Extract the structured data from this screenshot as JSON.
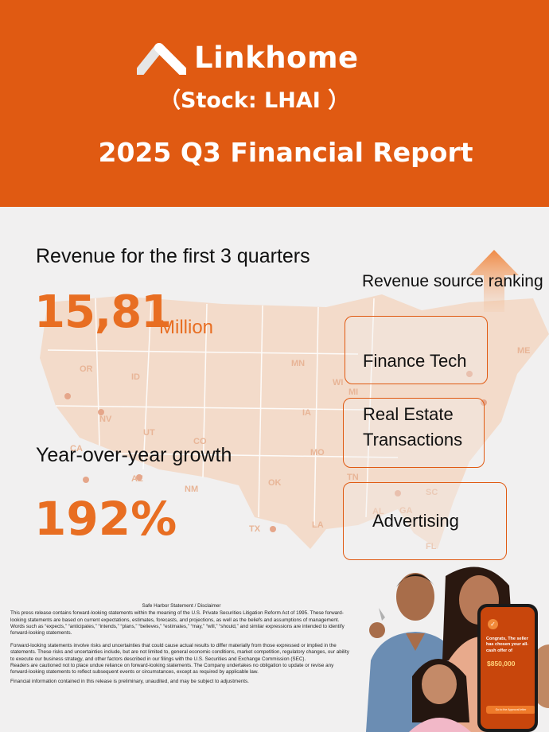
{
  "header": {
    "brand": "Linkhome",
    "stock": "（Stock: LHAI ）",
    "report_title": "2025 Q3 Financial Report",
    "background": "#e05a12"
  },
  "colors": {
    "accent": "#e86e22",
    "box_border": "#e05a12",
    "page_bg": "#f1f0f0",
    "map": "#f0c3a3"
  },
  "map_labels": [
    "OR",
    "ID",
    "NV",
    "UT",
    "CO",
    "CA",
    "AZ",
    "NM",
    "TX",
    "OK",
    "MN",
    "IA",
    "MO",
    "LA",
    "WI",
    "MI",
    "TN",
    "AL",
    "GA",
    "SC",
    "ME",
    "FL"
  ],
  "revenue": {
    "label": "Revenue for the first 3 quarters",
    "value": "15,81",
    "unit": "Million"
  },
  "growth": {
    "label": "Year-over-year growth",
    "value": "192%"
  },
  "ranking": {
    "title": "Revenue source ranking",
    "items": [
      {
        "label": "Finance Tech"
      },
      {
        "label": "Real Estate Transactions"
      },
      {
        "label": "Advertising"
      }
    ]
  },
  "disclaimer": {
    "title": "Safe Harbor Statement / Disclaimer",
    "p1": "This press release contains forward-looking statements within the meaning of the U.S. Private Securities Litigation Reform Act of 1995. These forward-looking statements are based on current expectations, estimates, forecasts, and projections, as well as the beliefs and assumptions of management. Words such as “expects,” “anticipates,” “intends,” “plans,” “believes,” “estimates,” “may,” “will,” “should,” and similar expressions are intended to identify forward-looking statements.",
    "p2": "Forward-looking statements involve risks and uncertainties that could cause actual results to differ materially from those expressed or implied in the statements. These risks and uncertainties include, but are not limited to, general economic conditions, market competition, regulatory changes, our ability to execute our business strategy, and other factors described in our filings with the U.S. Securities and Exchange Commission (SEC).",
    "p3": "Readers are cautioned not to place undue reliance on forward-looking statements. The Company undertakes no obligation to update or revise any forward-looking statements to reflect subsequent events or circumstances, except as required by applicable law.",
    "p4": "Financial information contained in this release is preliminary, unaudited, and may be subject to adjustments."
  },
  "phone": {
    "check_icon": "✓",
    "congrats": "Congrats, The seller has chosen your all-cash offer of",
    "amount": "$850,000",
    "button": "Go to the Approval letter"
  }
}
